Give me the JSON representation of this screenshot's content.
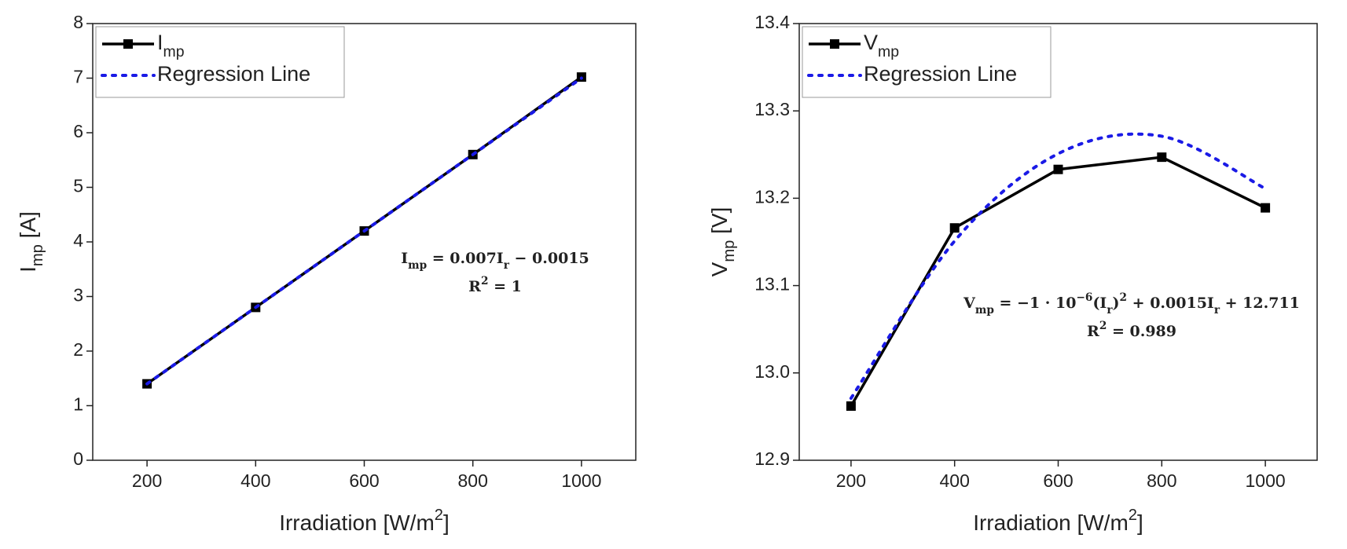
{
  "chart_data": [
    {
      "type": "line",
      "x_label": "Irradiation [W/m^{2}]",
      "y_label": "I_{mp} [A]",
      "x": [
        200,
        400,
        600,
        800,
        1000
      ],
      "series": [
        {
          "name": "I_{mp}",
          "color": "#000000",
          "marker": "square",
          "dash": "solid",
          "values": [
            1.4,
            2.8,
            4.2,
            5.6,
            7.02
          ]
        },
        {
          "name": "Regression Line",
          "color": "#1a1ae6",
          "dash": "dotted",
          "values": [
            1.4,
            2.8,
            4.2,
            5.6,
            7.0
          ]
        }
      ],
      "xlim": [
        100,
        1100
      ],
      "xticks": [
        200,
        400,
        600,
        800,
        1000
      ],
      "ylim": [
        0,
        8
      ],
      "yticks": [
        0,
        1,
        2,
        3,
        4,
        5,
        6,
        7,
        8
      ],
      "legend": "upper left",
      "annotations": [
        "I_{mp} = 0.007I_{r} − 0.0015",
        "R^{2} = 1"
      ]
    },
    {
      "type": "line",
      "x_label": "Irradiation [W/m^{2}]",
      "y_label": "V_{mp} [V]",
      "x": [
        200,
        400,
        600,
        800,
        1000
      ],
      "series": [
        {
          "name": "V_{mp}",
          "color": "#000000",
          "marker": "square",
          "dash": "solid",
          "values": [
            12.962,
            13.166,
            13.233,
            13.247,
            13.189
          ]
        },
        {
          "name": "Regression Line",
          "color": "#1a1ae6",
          "dash": "dotted",
          "smooth": true,
          "values": [
            12.971,
            13.151,
            13.251,
            13.271,
            13.211
          ]
        }
      ],
      "xlim": [
        100,
        1100
      ],
      "xticks": [
        200,
        400,
        600,
        800,
        1000
      ],
      "ylim": [
        12.9,
        13.4
      ],
      "yticks": [
        12.9,
        {
          "value": 13.0,
          "label": "13.0"
        },
        13.1,
        13.2,
        13.3,
        13.4
      ],
      "legend": "upper left",
      "annotations": [
        "V_{mp} = −1 · 10^{−6}(I_{r})^{2} + 0.0015I_{r} + 12.711",
        "R^{2} = 0.989"
      ]
    }
  ]
}
